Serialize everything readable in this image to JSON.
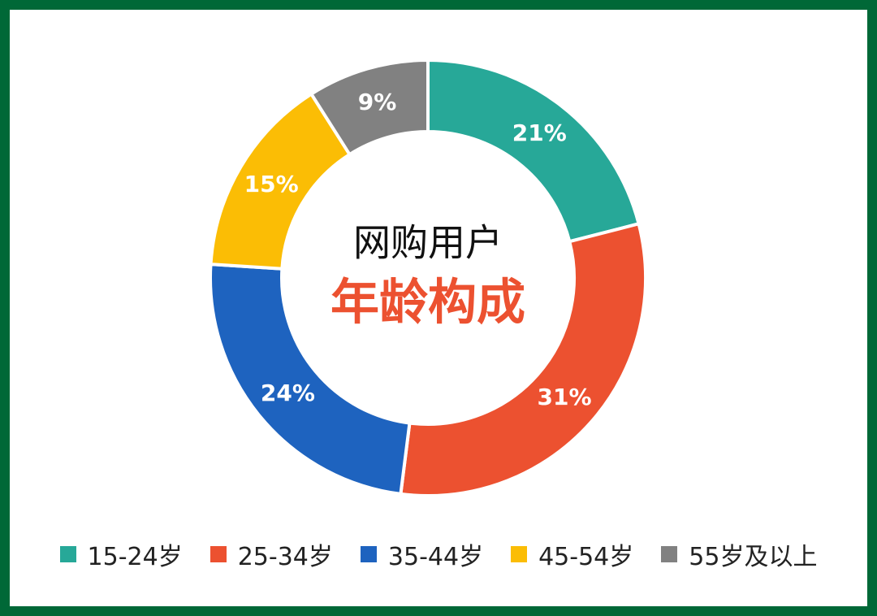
{
  "chart_data": {
    "type": "donut",
    "title": "网购用户",
    "subtitle": "年龄构成",
    "categories": [
      "15-24岁",
      "25-34岁",
      "35-44岁",
      "45-54岁",
      "55岁及以上"
    ],
    "series": [
      {
        "values": [
          21,
          31,
          24,
          15,
          9
        ],
        "value_labels": [
          "21%",
          "31%",
          "24%",
          "15%",
          "9%"
        ],
        "colors": [
          "#27a898",
          "#ec5130",
          "#1e63bf",
          "#fbbd05",
          "#818181"
        ]
      }
    ],
    "legend": "bottom"
  }
}
